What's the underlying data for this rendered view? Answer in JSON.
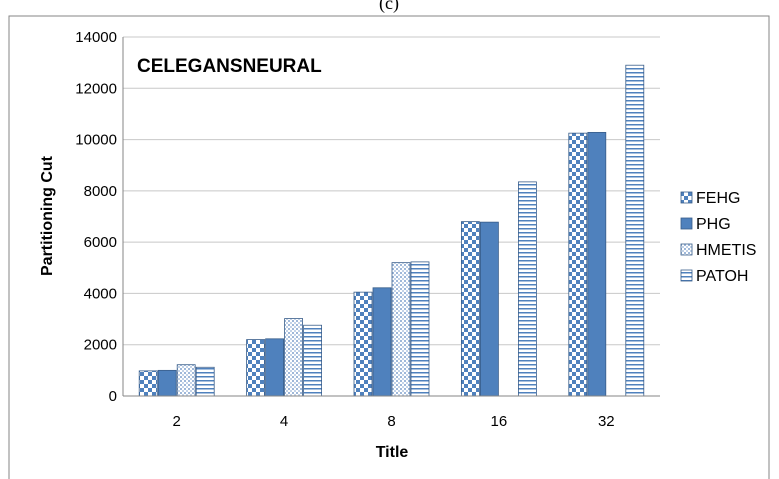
{
  "page_caption": "(c)",
  "chart_data": {
    "type": "bar",
    "title": "CELEGANSNEURAL",
    "xlabel": "Title",
    "ylabel": "Partitioning Cut",
    "categories": [
      "2",
      "4",
      "8",
      "16",
      "32"
    ],
    "ylim": [
      0,
      14000
    ],
    "yticks": [
      0,
      2000,
      4000,
      6000,
      8000,
      10000,
      12000,
      14000
    ],
    "grid": true,
    "legend_position": "right",
    "series": [
      {
        "name": "FEHG",
        "pattern": "checker",
        "values": [
          980,
          2200,
          4050,
          6800,
          10250
        ]
      },
      {
        "name": "PHG",
        "pattern": "solid",
        "values": [
          1000,
          2230,
          4220,
          6780,
          10280
        ]
      },
      {
        "name": "HMETIS",
        "pattern": "dots",
        "values": [
          1220,
          3020,
          5200,
          null,
          null
        ]
      },
      {
        "name": "PATOH",
        "pattern": "hstripes",
        "values": [
          1120,
          2760,
          5230,
          8350,
          12900
        ]
      }
    ],
    "colors": {
      "blue": "#4f81bd",
      "border": "#385d8a",
      "grid": "#c8c8c8",
      "axis": "#868686"
    }
  }
}
